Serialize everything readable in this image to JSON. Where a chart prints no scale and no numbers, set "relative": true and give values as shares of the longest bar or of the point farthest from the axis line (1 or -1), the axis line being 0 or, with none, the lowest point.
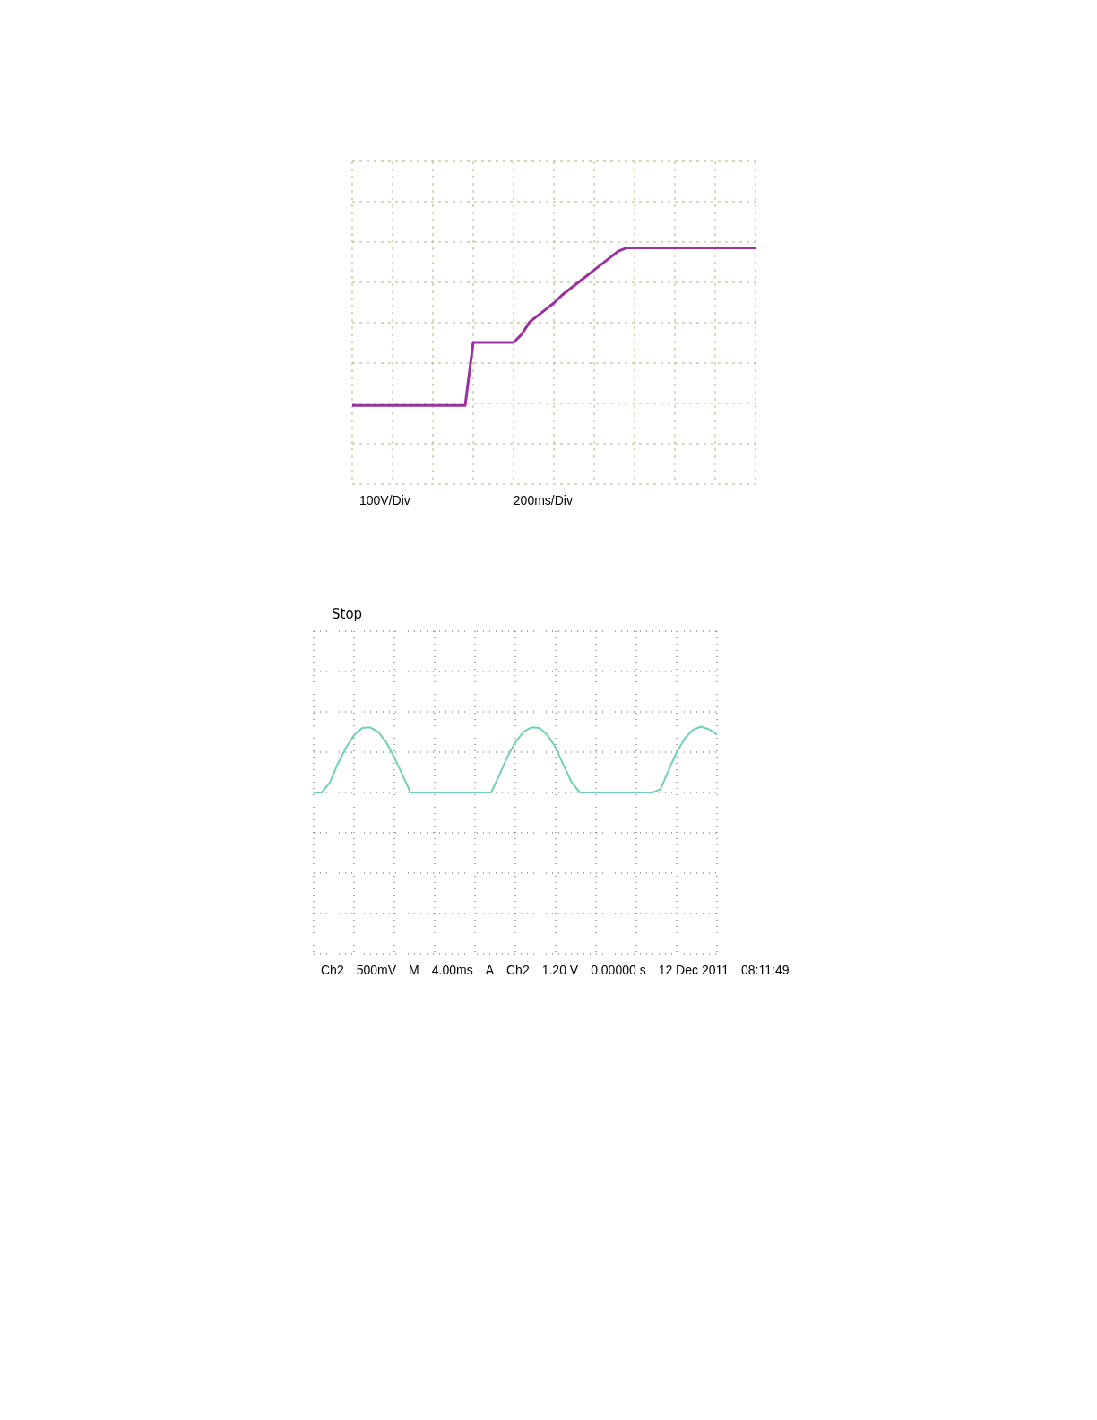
{
  "chart_data": [
    {
      "type": "line",
      "relative": true,
      "grid": true,
      "line_style": "solid",
      "categories": [
        null,
        null,
        null,
        null,
        null,
        null,
        null,
        null,
        null,
        null,
        null,
        null,
        null,
        null,
        null,
        null,
        null,
        null,
        null,
        null,
        null,
        null,
        null,
        null,
        null,
        null,
        null,
        null,
        null,
        null,
        null,
        null,
        null,
        null,
        null,
        null,
        null,
        null,
        null,
        null,
        null,
        null,
        null,
        null,
        null,
        null,
        null,
        null,
        null,
        null,
        null
      ],
      "series": [
        {
          "color": "#9b30a0",
          "values": [
            0,
            0,
            0,
            0,
            0,
            0,
            0,
            0,
            0,
            0,
            0,
            0,
            0,
            0,
            0,
            0.4,
            0.4,
            0.4,
            0.4,
            0.4,
            0.4,
            0.45,
            0.53,
            0.57,
            0.61,
            0.65,
            0.7,
            0.74,
            0.78,
            0.82,
            0.86,
            0.9,
            0.94,
            0.98,
            1,
            1,
            1,
            1,
            1,
            1,
            1,
            1,
            1,
            1,
            1,
            1,
            1,
            1,
            1,
            1,
            1
          ]
        }
      ],
      "annotations": [
        "100V/Div",
        "200ms/Div"
      ]
    },
    {
      "type": "line",
      "relative": true,
      "grid": true,
      "line_style": "solid",
      "categories": [
        null,
        null,
        null,
        null,
        null,
        null,
        null,
        null,
        null,
        null,
        null,
        null,
        null,
        null,
        null,
        null,
        null,
        null,
        null,
        null,
        null,
        null,
        null,
        null,
        null,
        null,
        null,
        null,
        null,
        null,
        null,
        null,
        null,
        null,
        null,
        null,
        null,
        null,
        null,
        null,
        null,
        null,
        null,
        null,
        null,
        null,
        null,
        null,
        null,
        null,
        null
      ],
      "series": [
        {
          "color": "#6fd0b8",
          "values": [
            0,
            0,
            0.15,
            0.44,
            0.68,
            0.87,
            0.98,
            0.99,
            0.92,
            0.76,
            0.53,
            0.27,
            0,
            0,
            0,
            0,
            0,
            0,
            0,
            0,
            0,
            0,
            0,
            0.26,
            0.54,
            0.76,
            0.92,
            0.99,
            0.98,
            0.87,
            0.68,
            0.41,
            0.15,
            0,
            0,
            0,
            0,
            0,
            0,
            0,
            0,
            0,
            0,
            0.05,
            0.34,
            0.61,
            0.82,
            0.95,
            1,
            0.96,
            0.88
          ]
        }
      ],
      "annotations": [
        "Stop",
        "Ch2",
        "500mV",
        "M",
        "4.00ms",
        "A",
        "Ch2",
        "1.20 V",
        "0.00000 s",
        "12 Dec  2011",
        "08:11:49"
      ]
    }
  ]
}
